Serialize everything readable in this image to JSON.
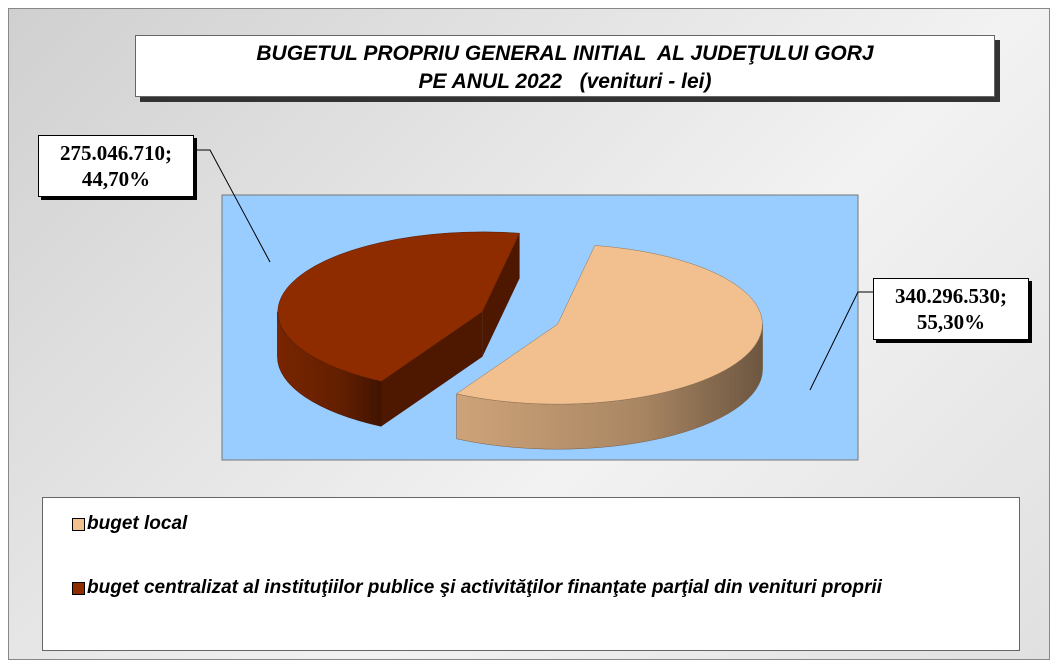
{
  "chart_data": {
    "type": "pie",
    "title": "BUGETUL PROPRIU GENERAL INITIAL  AL JUDEŢULUI GORJ\nPE ANUL 2022   (venituri - lei)",
    "categories": [
      "buget local",
      "buget centralizat al instituţiilor publice şi activităţilor finanţate parţial din venituri proprii"
    ],
    "values": [
      340296530,
      275046710
    ],
    "value_labels": [
      "340.296.530; 55,30%",
      "275.046.710; 44,70%"
    ],
    "colors": [
      "#f2c08e",
      "#8e2c00"
    ],
    "legend": "bottom"
  }
}
